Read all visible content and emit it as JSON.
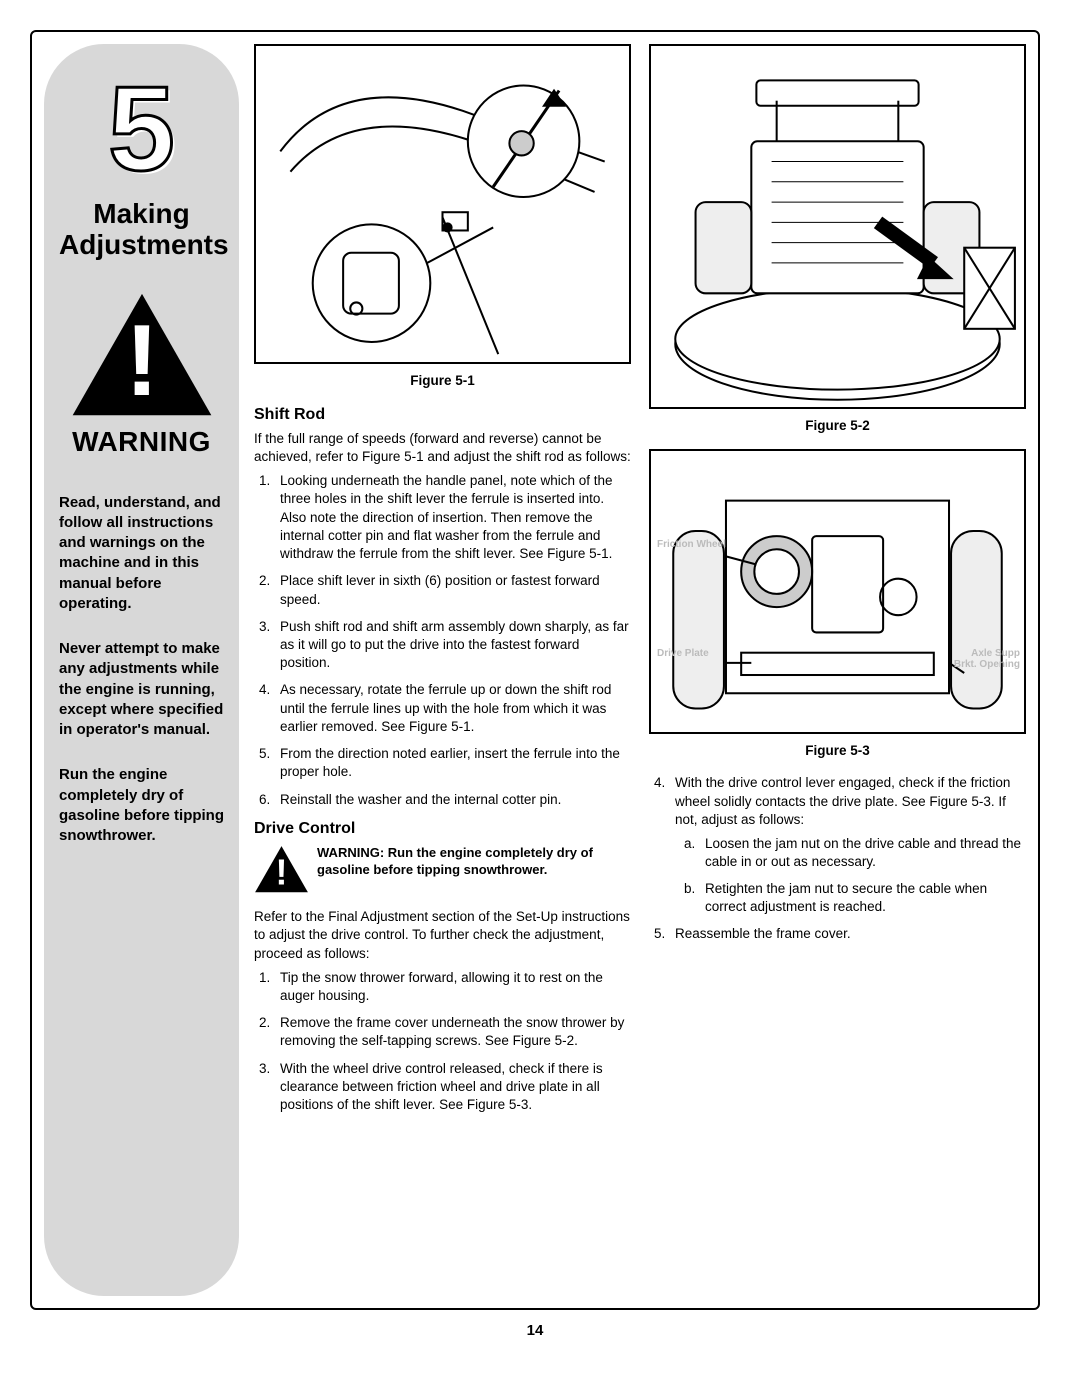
{
  "sidebar": {
    "chapter_number": "5",
    "chapter_title": "Making Adjustments",
    "warning_label": "WARNING",
    "para1": "Read, understand, and follow all instructions and warnings on the machine and in this manual before operating.",
    "para2": "Never attempt to make any adjustments while the engine is running, except where specified in operator's manual.",
    "para3": "Run the engine completely dry of gasoline before tipping snowthrower."
  },
  "figures": {
    "f1": "Figure 5-1",
    "f2": "Figure 5-2",
    "f3": "Figure 5-3",
    "f3_labels": {
      "friction_wheel": "Friction Wheel",
      "drive_plate": "Drive Plate",
      "axle_supp": "Axle Supp Brkt. Opening"
    }
  },
  "shift_rod": {
    "heading": "Shift Rod",
    "intro": "If the full range of speeds (forward and reverse) cannot be achieved, refer to Figure 5-1 and adjust the shift rod as follows:",
    "steps": [
      "Looking underneath the handle panel, note which of the three holes in the shift lever the ferrule is inserted into. Also note the direction of insertion. Then remove the internal cotter pin and flat washer from the ferrule and withdraw the ferrule from the shift lever. See Figure 5-1.",
      "Place shift lever in sixth (6) position or fastest forward speed.",
      "Push shift rod and shift arm assembly down sharply, as far as it will go to put the drive into the fastest forward position.",
      "As necessary, rotate the ferrule up or down the shift rod until the ferrule lines up with the hole from which it was earlier removed. See Figure 5-1.",
      "From the direction noted earlier, insert the ferrule into the proper hole.",
      "Reinstall the washer and the internal cotter pin."
    ]
  },
  "drive_control": {
    "heading": "Drive Control",
    "warning": "WARNING: Run the engine completely dry of gasoline before tipping snowthrower.",
    "intro": "Refer to the Final Adjustment section of the Set-Up instructions to adjust the drive control. To further check the adjustment, proceed as follows:",
    "steps_a": [
      "Tip the snow thrower forward, allowing it to rest on the auger housing.",
      "Remove the frame cover underneath the snow thrower by removing the self-tapping screws. See Figure 5-2.",
      "With the wheel drive control released, check if there is clearance between friction wheel and drive plate in all positions of the shift lever. See Figure 5-3."
    ],
    "step4": "With the drive control lever engaged, check if the friction wheel solidly contacts the drive plate. See Figure 5-3. If not, adjust as follows:",
    "substeps": [
      "Loosen the jam nut on the drive cable and thread the cable in or out as necessary.",
      "Retighten the jam nut to secure the cable when correct adjustment is reached."
    ],
    "step5": "Reassemble the frame cover."
  },
  "page_number": "14",
  "colors": {
    "sidebar_bg": "#d8d8d8",
    "text": "#000000",
    "border": "#000000"
  }
}
